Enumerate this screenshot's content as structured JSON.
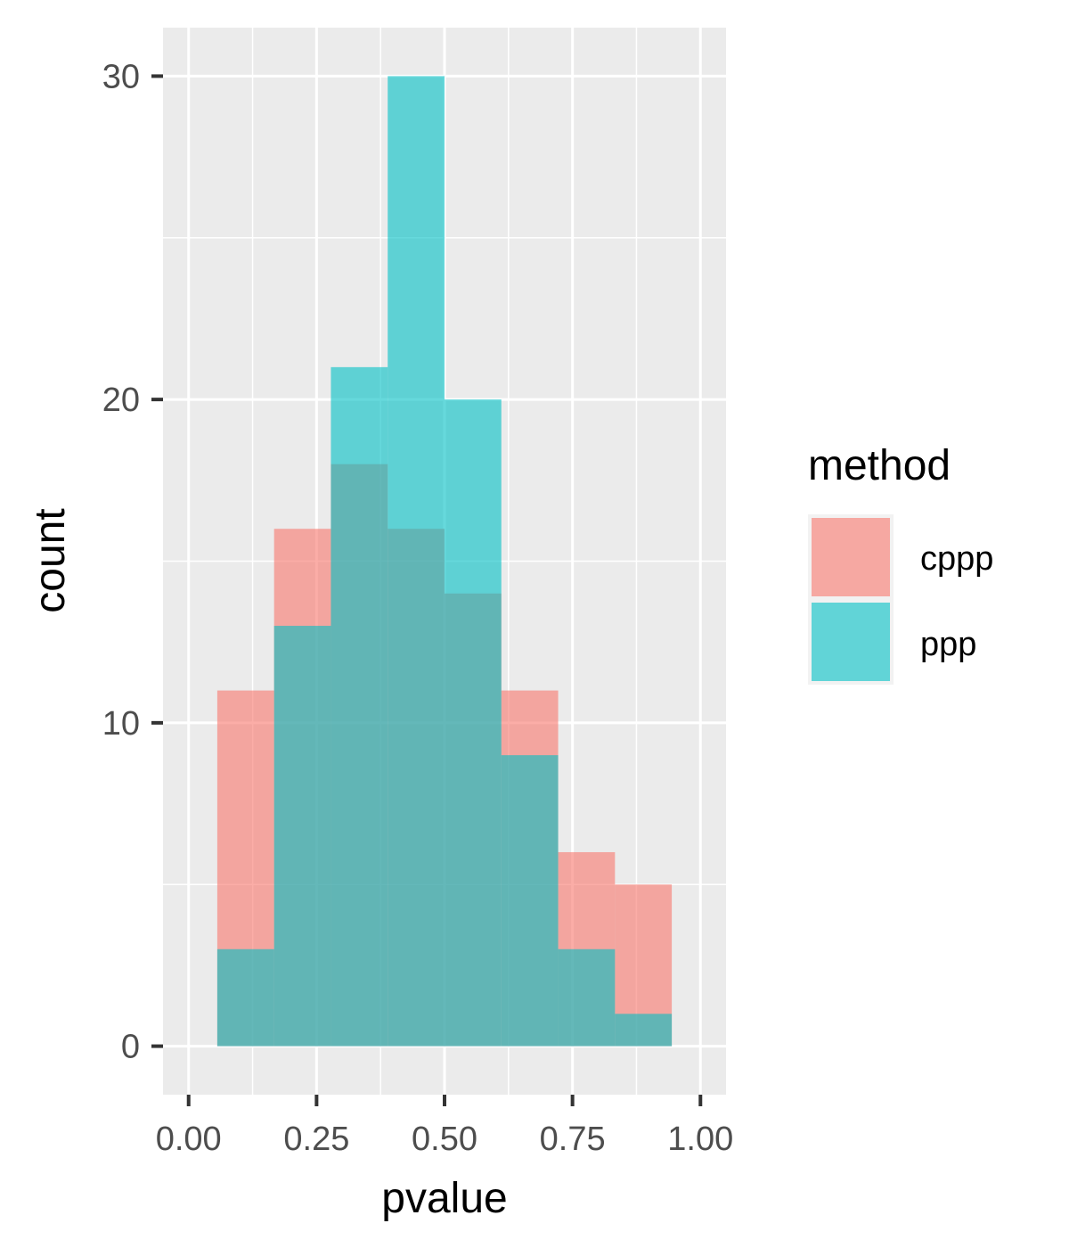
{
  "chart_data": {
    "type": "bar",
    "subtype": "overlapping histogram",
    "xlabel": "pvalue",
    "ylabel": "count",
    "xlim": [
      -0.05,
      1.05
    ],
    "ylim": [
      -1.5,
      31.5
    ],
    "x_ticks": [
      0.0,
      0.25,
      0.5,
      0.75,
      1.0
    ],
    "x_tick_labels": [
      "0.00",
      "0.25",
      "0.50",
      "0.75",
      "1.00"
    ],
    "y_ticks": [
      0,
      10,
      20,
      30
    ],
    "y_tick_labels": [
      "0",
      "10",
      "20",
      "30"
    ],
    "bin_edges": [
      0.056,
      0.167,
      0.278,
      0.389,
      0.5,
      0.611,
      0.722,
      0.833,
      0.944
    ],
    "series": [
      {
        "name": "cppp",
        "color": "#F8766D",
        "values": [
          11,
          16,
          18,
          16,
          14,
          11,
          6,
          5
        ]
      },
      {
        "name": "ppp",
        "color": "#00BFC4",
        "values": [
          3,
          13,
          21,
          30,
          20,
          9,
          3,
          1
        ]
      }
    ],
    "legend": {
      "title": "method",
      "position": "right"
    },
    "grid": true,
    "panel_background": "#EBEBEB",
    "grid_color": "#FFFFFF",
    "fill_alpha": 0.6
  }
}
